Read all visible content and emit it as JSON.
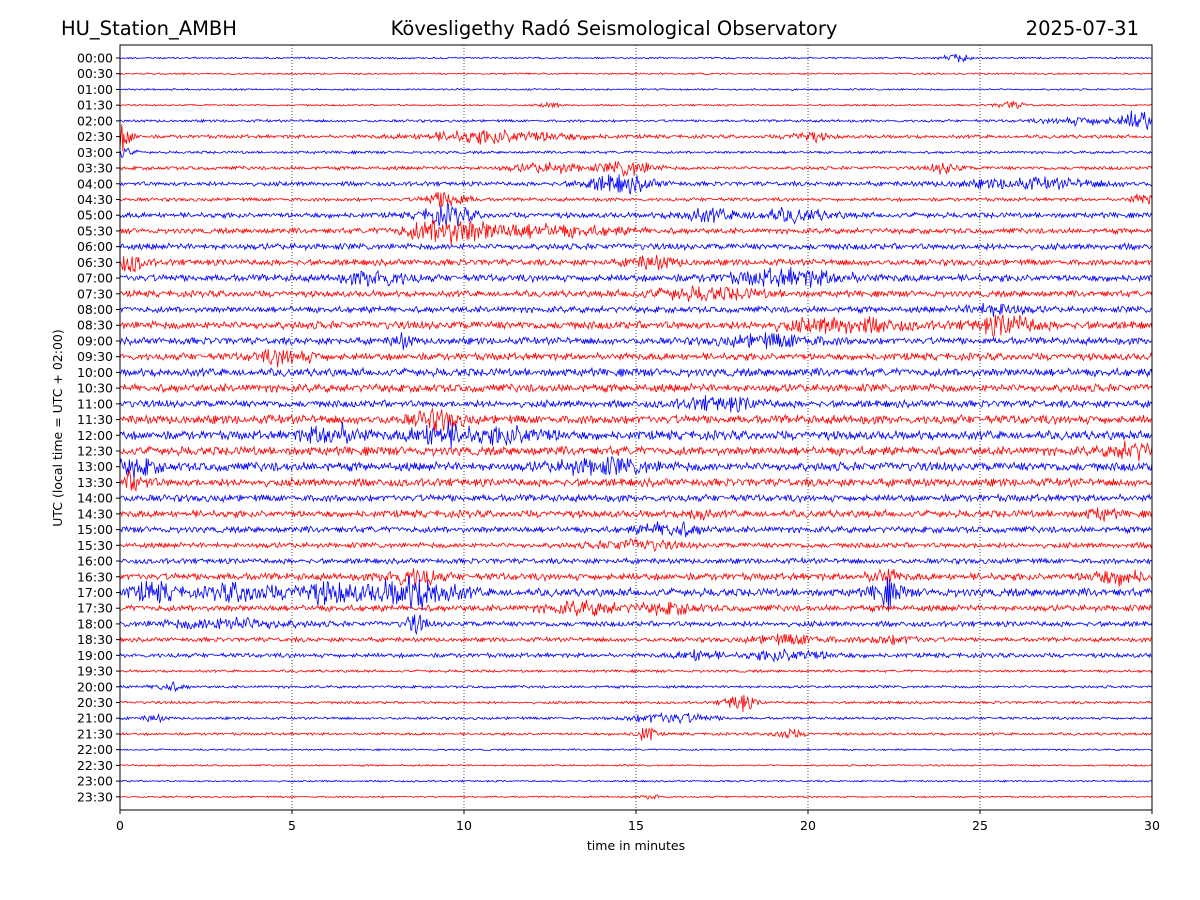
{
  "header": {
    "station": "HU_Station_AMBH",
    "observatory": "Kövesligethy Radó Seismological Observatory",
    "date": "2025-07-31"
  },
  "chart_data": {
    "type": "line",
    "title": "Kövesligethy Radó Seismological Observatory",
    "xlabel": "time in minutes",
    "ylabel": "UTC (local time = UTC + 02:00)",
    "xlim": [
      0,
      30
    ],
    "x_ticks": [
      "0",
      "5",
      "10",
      "15",
      "20",
      "25",
      "30"
    ],
    "grid": "vertical dotted lines at 5-minute ticks",
    "series_colors": [
      "#0000ff",
      "#ff0000"
    ],
    "rows": [
      {
        "label": "00:00",
        "amp": 1,
        "bursts": [
          {
            "t": 24.3,
            "a": 4,
            "w": 0.3
          }
        ]
      },
      {
        "label": "00:30",
        "amp": 1,
        "bursts": []
      },
      {
        "label": "01:00",
        "amp": 1,
        "bursts": []
      },
      {
        "label": "01:30",
        "amp": 1,
        "bursts": [
          {
            "t": 25.9,
            "a": 4,
            "w": 0.3
          },
          {
            "t": 12.5,
            "a": 3,
            "w": 0.2
          }
        ]
      },
      {
        "label": "02:00",
        "amp": 1.5,
        "bursts": [
          {
            "t": 28.0,
            "a": 4,
            "w": 0.8
          },
          {
            "t": 29.7,
            "a": 12,
            "w": 0.4
          }
        ]
      },
      {
        "label": "02:30",
        "amp": 2,
        "bursts": [
          {
            "t": 0.1,
            "a": 14,
            "w": 0.2
          },
          {
            "t": 11.0,
            "a": 7,
            "w": 1.5
          },
          {
            "t": 20.0,
            "a": 5,
            "w": 0.4
          }
        ]
      },
      {
        "label": "03:00",
        "amp": 1.5,
        "bursts": [
          {
            "t": 0.1,
            "a": 6,
            "w": 0.2
          }
        ]
      },
      {
        "label": "03:30",
        "amp": 2,
        "bursts": [
          {
            "t": 14.8,
            "a": 8,
            "w": 0.5
          },
          {
            "t": 24.0,
            "a": 6,
            "w": 0.3
          },
          {
            "t": 12.5,
            "a": 5,
            "w": 0.8
          }
        ]
      },
      {
        "label": "04:00",
        "amp": 2.5,
        "bursts": [
          {
            "t": 14.5,
            "a": 9,
            "w": 0.7
          },
          {
            "t": 26.5,
            "a": 5,
            "w": 1.5
          }
        ]
      },
      {
        "label": "04:30",
        "amp": 2,
        "bursts": [
          {
            "t": 9.5,
            "a": 10,
            "w": 0.4
          },
          {
            "t": 29.8,
            "a": 6,
            "w": 0.3
          }
        ]
      },
      {
        "label": "05:00",
        "amp": 3,
        "bursts": [
          {
            "t": 9.5,
            "a": 10,
            "w": 0.5
          },
          {
            "t": 17.0,
            "a": 6,
            "w": 0.6
          },
          {
            "t": 19.5,
            "a": 6,
            "w": 0.8
          }
        ]
      },
      {
        "label": "05:30",
        "amp": 3,
        "bursts": [
          {
            "t": 9.5,
            "a": 12,
            "w": 0.8
          },
          {
            "t": 12.0,
            "a": 6,
            "w": 1.8
          }
        ]
      },
      {
        "label": "06:00",
        "amp": 3.5,
        "bursts": []
      },
      {
        "label": "06:30",
        "amp": 3.5,
        "bursts": [
          {
            "t": 0.3,
            "a": 9,
            "w": 0.3
          },
          {
            "t": 15.5,
            "a": 6,
            "w": 0.5
          }
        ]
      },
      {
        "label": "07:00",
        "amp": 4,
        "bursts": [
          {
            "t": 7.5,
            "a": 8,
            "w": 0.6
          },
          {
            "t": 19.5,
            "a": 8,
            "w": 1.2
          }
        ]
      },
      {
        "label": "07:30",
        "amp": 3.5,
        "bursts": [
          {
            "t": 17.0,
            "a": 6,
            "w": 1.2
          }
        ]
      },
      {
        "label": "08:00",
        "amp": 3.5,
        "bursts": [
          {
            "t": 25.5,
            "a": 6,
            "w": 0.6
          }
        ]
      },
      {
        "label": "08:30",
        "amp": 4.5,
        "bursts": [
          {
            "t": 21.0,
            "a": 7,
            "w": 1.2
          },
          {
            "t": 25.8,
            "a": 10,
            "w": 0.6
          }
        ]
      },
      {
        "label": "09:00",
        "amp": 4,
        "bursts": [
          {
            "t": 8.2,
            "a": 7,
            "w": 0.2
          },
          {
            "t": 19.0,
            "a": 6,
            "w": 1.0
          }
        ]
      },
      {
        "label": "09:30",
        "amp": 4,
        "bursts": [
          {
            "t": 4.8,
            "a": 7,
            "w": 0.6
          }
        ]
      },
      {
        "label": "10:00",
        "amp": 4.5,
        "bursts": []
      },
      {
        "label": "10:30",
        "amp": 4.5,
        "bursts": []
      },
      {
        "label": "11:00",
        "amp": 4,
        "bursts": [
          {
            "t": 17.5,
            "a": 6,
            "w": 0.8
          }
        ]
      },
      {
        "label": "11:30",
        "amp": 5,
        "bursts": [
          {
            "t": 9.2,
            "a": 9,
            "w": 0.5
          }
        ]
      },
      {
        "label": "12:00",
        "amp": 5,
        "bursts": [
          {
            "t": 6.2,
            "a": 10,
            "w": 0.6
          },
          {
            "t": 9.3,
            "a": 11,
            "w": 0.6
          },
          {
            "t": 11.5,
            "a": 8,
            "w": 0.8
          }
        ]
      },
      {
        "label": "12:30",
        "amp": 5,
        "bursts": [
          {
            "t": 29.5,
            "a": 8,
            "w": 0.5
          }
        ]
      },
      {
        "label": "13:00",
        "amp": 5,
        "bursts": [
          {
            "t": 0.5,
            "a": 8,
            "w": 0.4
          },
          {
            "t": 14.0,
            "a": 7,
            "w": 1.0
          }
        ]
      },
      {
        "label": "13:30",
        "amp": 4.5,
        "bursts": [
          {
            "t": 0.4,
            "a": 9,
            "w": 0.3
          }
        ]
      },
      {
        "label": "14:00",
        "amp": 4,
        "bursts": []
      },
      {
        "label": "14:30",
        "amp": 4,
        "bursts": [
          {
            "t": 16.8,
            "a": 7,
            "w": 0.2
          },
          {
            "t": 28.5,
            "a": 5,
            "w": 0.3
          }
        ]
      },
      {
        "label": "15:00",
        "amp": 3.5,
        "bursts": [
          {
            "t": 16.0,
            "a": 7,
            "w": 0.6
          }
        ]
      },
      {
        "label": "15:30",
        "amp": 3,
        "bursts": [
          {
            "t": 15.0,
            "a": 5,
            "w": 0.8
          }
        ]
      },
      {
        "label": "16:00",
        "amp": 3,
        "bursts": []
      },
      {
        "label": "16:30",
        "amp": 4,
        "bursts": [
          {
            "t": 8.5,
            "a": 10,
            "w": 0.5
          },
          {
            "t": 22.2,
            "a": 8,
            "w": 0.3
          },
          {
            "t": 29.0,
            "a": 7,
            "w": 0.6
          }
        ]
      },
      {
        "label": "17:00",
        "amp": 4.5,
        "bursts": [
          {
            "t": 1.0,
            "a": 9,
            "w": 0.5
          },
          {
            "t": 3.5,
            "a": 9,
            "w": 0.6
          },
          {
            "t": 6.0,
            "a": 10,
            "w": 0.8
          },
          {
            "t": 8.6,
            "a": 16,
            "w": 0.8
          },
          {
            "t": 22.3,
            "a": 13,
            "w": 0.3
          }
        ]
      },
      {
        "label": "17:30",
        "amp": 3.5,
        "bursts": [
          {
            "t": 13.5,
            "a": 6,
            "w": 0.8
          },
          {
            "t": 16.0,
            "a": 5,
            "w": 0.6
          }
        ]
      },
      {
        "label": "18:00",
        "amp": 3,
        "bursts": [
          {
            "t": 3.2,
            "a": 6,
            "w": 1.2
          },
          {
            "t": 8.6,
            "a": 10,
            "w": 0.2
          }
        ]
      },
      {
        "label": "18:30",
        "amp": 2.5,
        "bursts": [
          {
            "t": 19.5,
            "a": 5,
            "w": 0.8
          },
          {
            "t": 22.5,
            "a": 4,
            "w": 0.6
          }
        ]
      },
      {
        "label": "19:00",
        "amp": 2.5,
        "bursts": [
          {
            "t": 16.8,
            "a": 6,
            "w": 0.4
          },
          {
            "t": 19.5,
            "a": 6,
            "w": 0.8
          }
        ]
      },
      {
        "label": "19:30",
        "amp": 1.5,
        "bursts": []
      },
      {
        "label": "20:00",
        "amp": 1.5,
        "bursts": [
          {
            "t": 1.4,
            "a": 5,
            "w": 0.3
          }
        ]
      },
      {
        "label": "20:30",
        "amp": 1.5,
        "bursts": [
          {
            "t": 18.0,
            "a": 10,
            "w": 0.3
          }
        ]
      },
      {
        "label": "21:00",
        "amp": 1.5,
        "bursts": [
          {
            "t": 1.0,
            "a": 4,
            "w": 0.2
          },
          {
            "t": 16.0,
            "a": 6,
            "w": 0.8
          }
        ]
      },
      {
        "label": "21:30",
        "amp": 1.5,
        "bursts": [
          {
            "t": 15.3,
            "a": 9,
            "w": 0.2
          },
          {
            "t": 19.4,
            "a": 5,
            "w": 0.3
          }
        ]
      },
      {
        "label": "22:00",
        "amp": 1,
        "bursts": []
      },
      {
        "label": "22:30",
        "amp": 1,
        "bursts": []
      },
      {
        "label": "23:00",
        "amp": 1,
        "bursts": []
      },
      {
        "label": "23:30",
        "amp": 1,
        "bursts": [
          {
            "t": 15.5,
            "a": 3,
            "w": 0.2
          }
        ]
      }
    ]
  }
}
